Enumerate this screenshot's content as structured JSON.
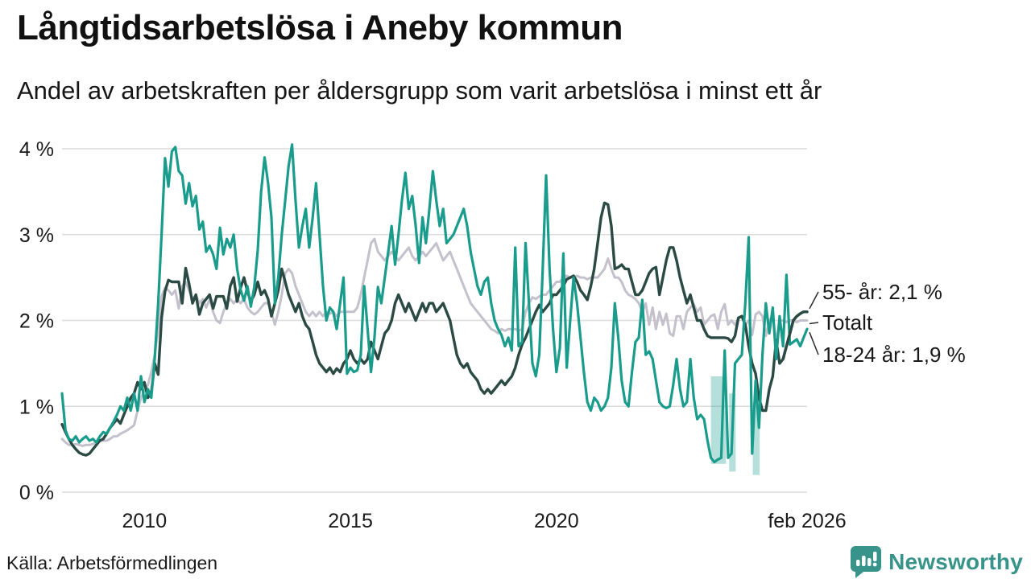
{
  "header": {
    "title": "Långtidsarbetslösa i Aneby kommun",
    "subtitle": "Andel av arbetskraften per åldersgrupp som varit arbetslösa i minst ett år"
  },
  "footer": {
    "source": "Källa: Arbetsförmedlingen",
    "brand": "Newsworthy",
    "brand_color": "#38948a"
  },
  "chart_data": {
    "type": "line",
    "title": "Långtidsarbetslösa i Aneby kommun",
    "subtitle": "Andel av arbetskraften per åldersgrupp som varit arbetslösa i minst ett år",
    "x_unit": "month",
    "x_start": "2008-01",
    "x_end": "2026-02",
    "ylim": [
      0,
      4.2
    ],
    "grid": "horizontal",
    "y_ticks": [
      {
        "value": 4,
        "label": "4 %"
      },
      {
        "value": 3,
        "label": "3 %"
      },
      {
        "value": 2,
        "label": "2 %"
      },
      {
        "value": 1,
        "label": "1 %"
      },
      {
        "value": 0,
        "label": "0 %"
      }
    ],
    "x_ticks": [
      {
        "index": 24,
        "label": "2010"
      },
      {
        "index": 84,
        "label": "2015"
      },
      {
        "index": 144,
        "label": "2020"
      },
      {
        "index": 217,
        "label": "feb 2026"
      }
    ],
    "grid_color": "#dcdcdc",
    "series": [
      {
        "name": "Totalt",
        "color": "#c4c1cd",
        "width": 3,
        "values": [
          0.62,
          0.58,
          0.55,
          0.55,
          0.56,
          0.55,
          0.54,
          0.55,
          0.55,
          0.56,
          0.58,
          0.6,
          0.6,
          0.6,
          0.62,
          0.65,
          0.65,
          0.68,
          0.7,
          0.72,
          0.75,
          0.78,
          0.95,
          1.1,
          1.18,
          1.25,
          1.4,
          1.6,
          1.9,
          2.28,
          2.38,
          2.35,
          2.3,
          2.35,
          2.14,
          2.4,
          2.45,
          2.35,
          2.25,
          2.3,
          2.2,
          2.25,
          2.15,
          2.25,
          2.1,
          2.0,
          1.97,
          2.1,
          2.2,
          2.25,
          2.2,
          2.25,
          2.2,
          2.25,
          2.15,
          2.1,
          2.07,
          2.1,
          2.15,
          2.2,
          2.2,
          2.1,
          1.95,
          2.1,
          2.3,
          2.55,
          2.6,
          2.55,
          2.4,
          2.3,
          2.2,
          2.1,
          2.05,
          2.1,
          2.05,
          2.1,
          2.05,
          2.1,
          2.08,
          2.1,
          2.05,
          2.1,
          2.1,
          2.1,
          2.1,
          2.1,
          2.15,
          2.3,
          2.5,
          2.7,
          2.9,
          2.95,
          2.8,
          2.75,
          2.7,
          2.75,
          2.8,
          2.75,
          2.7,
          2.75,
          2.8,
          2.85,
          2.75,
          2.7,
          2.75,
          2.8,
          2.75,
          2.8,
          2.85,
          2.9,
          2.8,
          2.7,
          2.75,
          2.8,
          2.7,
          2.6,
          2.5,
          2.4,
          2.3,
          2.2,
          2.15,
          2.1,
          2.05,
          2.0,
          1.95,
          1.9,
          1.88,
          1.85,
          1.9,
          1.88,
          1.9,
          1.9,
          1.9,
          1.88,
          1.9,
          2.1,
          2.2,
          2.27,
          2.25,
          2.28,
          2.3,
          2.3,
          2.35,
          2.4,
          2.45,
          2.45,
          2.5,
          2.52,
          2.5,
          2.5,
          2.52,
          2.5,
          2.5,
          2.48,
          2.5,
          2.5,
          2.5,
          2.55,
          2.6,
          2.72,
          2.6,
          2.5,
          2.5,
          2.45,
          2.35,
          2.3,
          2.28,
          2.25,
          2.2,
          2.1,
          2.2,
          1.95,
          2.15,
          1.9,
          2.1,
          1.95,
          2.08,
          1.85,
          1.82,
          2.05,
          2.05,
          1.9,
          2.1,
          2.15,
          2.19,
          2.1,
          2.15,
          1.95,
          2.0,
          2.05,
          2.07,
          1.9,
          2.1,
          2.19,
          1.95,
          2.0,
          1.95,
          2.03,
          2.05,
          1.95,
          2.0,
          1.83,
          2.07,
          2.1,
          2.05,
          1.82,
          2.0,
          2.05,
          1.75,
          2.0,
          2.0,
          1.98,
          2.0,
          2.0,
          1.98,
          2.0,
          2.0,
          2.0
        ]
      },
      {
        "name": "55- år",
        "color": "#2b4a43",
        "width": 3.4,
        "values": [
          0.79,
          0.7,
          0.62,
          0.55,
          0.5,
          0.46,
          0.44,
          0.43,
          0.45,
          0.5,
          0.55,
          0.6,
          0.62,
          0.68,
          0.75,
          0.8,
          0.85,
          0.8,
          0.9,
          1.0,
          1.1,
          1.15,
          1.28,
          1.2,
          1.28,
          1.1,
          1.15,
          1.5,
          1.37,
          2.03,
          2.34,
          2.47,
          2.45,
          2.45,
          2.45,
          2.2,
          2.61,
          2.43,
          2.2,
          2.3,
          2.07,
          2.2,
          2.25,
          2.3,
          2.14,
          2.28,
          2.28,
          2.28,
          2.14,
          2.4,
          2.5,
          2.22,
          2.38,
          2.5,
          2.34,
          2.22,
          2.3,
          2.45,
          2.3,
          2.35,
          2.25,
          2.05,
          2.2,
          2.35,
          2.6,
          2.45,
          2.3,
          2.2,
          2.1,
          2.2,
          2.05,
          1.95,
          1.9,
          1.75,
          1.6,
          1.5,
          1.45,
          1.4,
          1.45,
          1.38,
          1.44,
          1.4,
          1.5,
          1.55,
          1.65,
          1.55,
          1.5,
          1.55,
          1.5,
          1.55,
          1.75,
          1.65,
          1.55,
          1.7,
          1.85,
          1.9,
          2.0,
          2.2,
          2.3,
          2.2,
          2.1,
          2.2,
          2.1,
          2.0,
          2.1,
          2.2,
          2.1,
          2.2,
          2.2,
          2.1,
          2.15,
          2.2,
          2.1,
          2.0,
          1.8,
          1.6,
          1.5,
          1.45,
          1.5,
          1.4,
          1.35,
          1.3,
          1.2,
          1.15,
          1.2,
          1.15,
          1.2,
          1.25,
          1.3,
          1.25,
          1.3,
          1.35,
          1.45,
          1.6,
          1.72,
          1.8,
          1.9,
          2.0,
          2.1,
          2.18,
          2.1,
          2.15,
          2.2,
          2.3,
          2.3,
          2.35,
          2.4,
          2.48,
          2.5,
          2.52,
          2.45,
          2.35,
          2.3,
          2.24,
          2.4,
          2.6,
          2.9,
          3.2,
          3.37,
          3.35,
          3.1,
          2.6,
          2.62,
          2.65,
          2.6,
          2.6,
          2.45,
          2.3,
          2.3,
          2.35,
          2.45,
          2.55,
          2.6,
          2.62,
          2.3,
          2.5,
          2.7,
          2.85,
          2.85,
          2.7,
          2.5,
          2.35,
          2.2,
          2.3,
          2.15,
          2.0,
          2.0,
          1.9,
          1.82,
          1.8,
          1.8,
          1.8,
          1.8,
          1.8,
          1.79,
          1.75,
          1.82,
          2.03,
          2.05,
          1.95,
          1.7,
          1.5,
          1.38,
          1.1,
          0.95,
          0.95,
          1.2,
          1.35,
          1.77,
          1.5,
          1.55,
          1.7,
          1.85,
          2.0,
          2.05,
          2.08,
          2.1,
          2.1
        ]
      },
      {
        "name": "18-24 år",
        "color": "#1a9c8c",
        "width": 3.2,
        "values": [
          1.15,
          0.72,
          0.62,
          0.6,
          0.65,
          0.58,
          0.62,
          0.65,
          0.6,
          0.62,
          0.58,
          0.65,
          0.7,
          0.68,
          0.75,
          0.82,
          0.9,
          1.0,
          0.95,
          1.1,
          0.95,
          1.15,
          0.95,
          1.35,
          1.05,
          1.2,
          1.1,
          1.56,
          2.2,
          3.0,
          3.89,
          3.56,
          3.97,
          4.02,
          3.74,
          3.69,
          3.36,
          3.6,
          3.33,
          3.45,
          3.06,
          3.15,
          2.8,
          2.87,
          2.77,
          2.6,
          3.08,
          2.77,
          2.95,
          2.85,
          3.0,
          2.6,
          2.36,
          2.23,
          2.4,
          2.16,
          2.39,
          2.82,
          3.5,
          3.9,
          3.6,
          3.2,
          2.2,
          2.5,
          3.0,
          3.4,
          3.8,
          4.05,
          3.4,
          2.85,
          3.1,
          3.3,
          2.85,
          3.2,
          3.6,
          3.0,
          2.4,
          2.0,
          2.15,
          2.1,
          1.9,
          2.2,
          2.5,
          1.38,
          1.45,
          1.4,
          1.42,
          1.6,
          2.4,
          1.9,
          1.4,
          1.8,
          2.39,
          2.2,
          2.5,
          2.8,
          3.1,
          2.65,
          3.0,
          3.4,
          3.72,
          3.3,
          3.45,
          3.1,
          2.67,
          3.2,
          2.9,
          3.3,
          3.74,
          3.4,
          3.1,
          3.3,
          2.9,
          2.95,
          3.0,
          3.1,
          3.2,
          3.3,
          3.1,
          2.8,
          2.6,
          2.4,
          2.3,
          2.45,
          2.5,
          2.2,
          2.0,
          1.9,
          1.83,
          1.7,
          1.8,
          1.65,
          2.85,
          1.7,
          1.75,
          2.9,
          2.2,
          1.5,
          1.35,
          1.6,
          2.6,
          3.69,
          2.6,
          1.9,
          1.4,
          1.68,
          2.78,
          1.45,
          2.0,
          2.5,
          2.2,
          1.8,
          1.4,
          1.05,
          0.95,
          1.1,
          1.05,
          0.95,
          1.0,
          1.1,
          1.45,
          2.2,
          1.8,
          1.3,
          1.05,
          1.0,
          1.4,
          1.75,
          1.8,
          2.24,
          1.6,
          1.64,
          1.55,
          1.3,
          1.05,
          1.0,
          0.98,
          1.0,
          1.25,
          1.55,
          1.2,
          1.0,
          1.05,
          1.55,
          1.1,
          0.85,
          0.9,
          0.85,
          0.6,
          0.4,
          0.35,
          0.38,
          0.4,
          1.65,
          0.4,
          0.45,
          1.5,
          1.55,
          1.6,
          2.2,
          2.97,
          0.45,
          1.3,
          0.75,
          1.6,
          2.2,
          1.85,
          2.15,
          1.55,
          2.05,
          1.7,
          2.53,
          1.72,
          1.75,
          1.78,
          1.7,
          1.8,
          1.9
        ]
      }
    ],
    "uncertainty_bands": [
      {
        "from_index": 189.0,
        "to_index": 193.4,
        "top": 1.35,
        "bottom": 0.33
      },
      {
        "from_index": 194.3,
        "to_index": 196.2,
        "top": 1.15,
        "bottom": 0.24
      },
      {
        "from_index": 201.2,
        "to_index": 203.2,
        "top": 1.05,
        "bottom": 0.2
      }
    ],
    "band_color": "rgba(26,156,140,0.32)",
    "annotations": [
      {
        "label": "55- år: 2,1 %",
        "series": "55- år"
      },
      {
        "label": "Totalt",
        "series": "Totalt"
      },
      {
        "label": "18-24 år: 1,9 %",
        "series": "18-24 år"
      }
    ],
    "annotation_color": "#1a1a1a",
    "legend_position": "right-of-line-ends"
  }
}
